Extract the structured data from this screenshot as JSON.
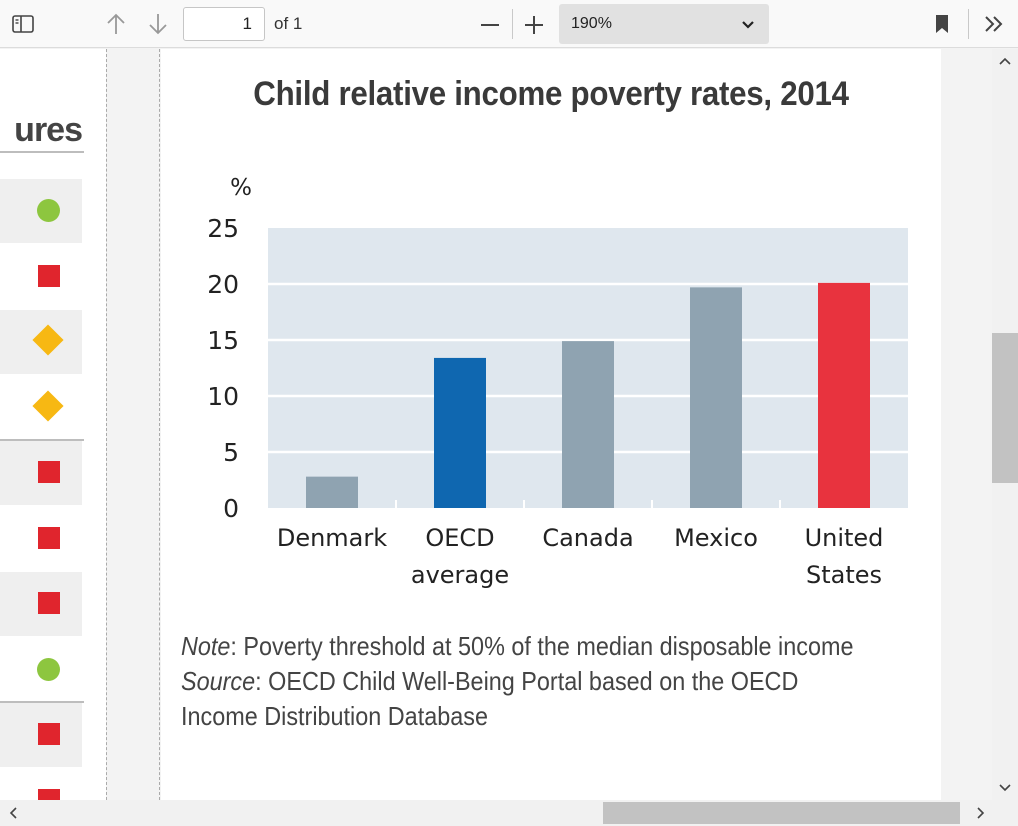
{
  "toolbar": {
    "page_value": "1",
    "page_total_label": "of 1",
    "zoom_label": "190%",
    "icons": [
      "sidebar-toggle-icon",
      "arrow-up-icon",
      "arrow-down-icon",
      "minus-icon",
      "plus-icon",
      "chevron-down-icon",
      "bookmark-icon",
      "double-chevron-right-icon"
    ]
  },
  "left_panel": {
    "title_fragment": "ures",
    "symbols": [
      {
        "shape": "circle",
        "color": "#8dc63f"
      },
      {
        "shape": "square",
        "color": "#e0252d"
      },
      {
        "shape": "diamond",
        "color": "#f7b813"
      },
      {
        "shape": "diamond",
        "color": "#f7b813"
      },
      {
        "shape": "square",
        "color": "#e0252d"
      },
      {
        "shape": "square",
        "color": "#e0252d"
      },
      {
        "shape": "square",
        "color": "#e0252d"
      },
      {
        "shape": "circle",
        "color": "#8dc63f"
      },
      {
        "shape": "square",
        "color": "#e0252d"
      },
      {
        "shape": "square",
        "color": "#e0252d"
      }
    ]
  },
  "chart_data": {
    "type": "bar",
    "title": "Child relative income poverty rates, 2014",
    "ylabel": "%",
    "xlabel": "",
    "ylim": [
      0,
      25
    ],
    "yticks": [
      0,
      5,
      10,
      15,
      20,
      25
    ],
    "categories": [
      [
        "Denmark"
      ],
      [
        "OECD",
        "average"
      ],
      [
        "Canada"
      ],
      [
        "Mexico"
      ],
      [
        "United",
        "States"
      ]
    ],
    "values": [
      2.8,
      13.4,
      14.9,
      19.7,
      20.1
    ],
    "bar_colors": [
      "#8fa3b1",
      "#0f67b0",
      "#8fa3b1",
      "#8fa3b1",
      "#e8333e"
    ],
    "plot_background": "#dfe7ee",
    "grid": true
  },
  "notes": {
    "note_label": "Note",
    "note_text": ": Poverty threshold at 50% of the median disposable income",
    "source_label": "Source",
    "source_text_1": ": OECD Child Well-Being Portal based on the OECD",
    "source_text_2": "Income Distribution Database"
  }
}
